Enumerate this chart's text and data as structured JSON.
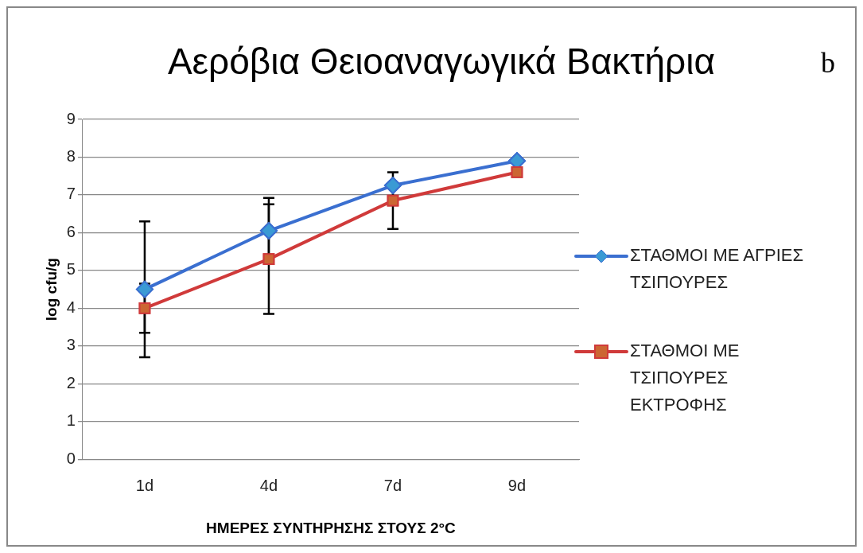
{
  "chart_data": {
    "type": "line",
    "title": "Αερόβια Θειοαναγωγικά Βακτήρια",
    "annotations": [
      "b"
    ],
    "xlabel": "ΗΜΕΡΕΣ ΣΥΝΤΗΡΗΣΗΣ ΣΤΟΥΣ 2°C",
    "ylabel": "log cfu/g",
    "categories": [
      "1d",
      "4d",
      "7d",
      "9d"
    ],
    "series": [
      {
        "name": "ΣΤΑΘΜΟΙ ΜΕ ΑΓΡΙΕΣ ΤΣΙΠΟΥΡΕΣ",
        "color": "#3a6fd0",
        "values": [
          4.5,
          6.05,
          7.25,
          7.9
        ],
        "errors": [
          1.8,
          0.87,
          null,
          null
        ],
        "marker": "diamond"
      },
      {
        "name": "ΣΤΑΘΜΟΙ ΜΕ ΤΣΙΠΟΥΡΕΣ ΕΚΤΡΟΦΗΣ",
        "color": "#d03a3a",
        "values": [
          4.0,
          5.3,
          6.85,
          7.6
        ],
        "errors": [
          0.65,
          1.45,
          0.75,
          null
        ],
        "marker": "square"
      }
    ],
    "ylim": [
      0,
      9
    ],
    "yticks": [
      0,
      1,
      2,
      3,
      4,
      5,
      6,
      7,
      8,
      9
    ],
    "grid": "y",
    "legend": "right"
  }
}
